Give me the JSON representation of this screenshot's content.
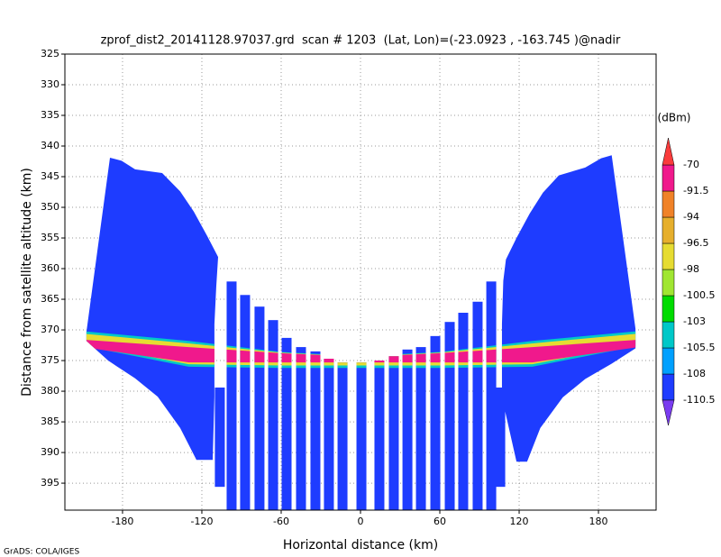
{
  "chart_data": {
    "type": "field",
    "title": "zprof_dist2_20141128.97037.grd  scan # 1203  (Lat, Lon)=(-23.0923 , -163.745 )@nadir",
    "xlabel": "Horizontal distance (km)",
    "ylabel": "Distance from satellite altitude (km)",
    "footer": "GrADS: COLA/IGES",
    "xlim": [
      -223.6,
      223.6
    ],
    "ylim": [
      325,
      399.4
    ],
    "xticks": [
      -180,
      -120,
      -60,
      0,
      60,
      120,
      180
    ],
    "yticks": [
      325,
      330,
      335,
      340,
      345,
      350,
      355,
      360,
      365,
      370,
      375,
      380,
      385,
      390,
      395
    ],
    "grid": true,
    "colorbar": {
      "unit": "(dBm)",
      "levels": [
        -110.5,
        -108,
        -105.5,
        -103,
        -100.5,
        -98,
        -96.5,
        -94,
        -91.5,
        -70
      ],
      "colors": [
        "#7a3cf0",
        "#1e3cff",
        "#00a0ff",
        "#00c8c8",
        "#00dc00",
        "#a0e632",
        "#e6dc32",
        "#e6af2d",
        "#f08228",
        "#f0198c",
        "#fa3c3c"
      ]
    },
    "fans": [
      {
        "value": -109,
        "x": [
          -207.3,
          -207.3,
          -190.9,
          -170.5,
          -153.4,
          -136.4,
          -124.1,
          -111.8,
          -110.5,
          -110.5,
          -109.1,
          -107.7,
          -115.9,
          -126.1,
          -136.4,
          -150,
          -170.5,
          -180.7,
          -189.5
        ],
        "y": [
          370.3,
          371.8,
          375,
          377.9,
          380.9,
          386,
          391.2,
          391.2,
          380.9,
          369.1,
          362.9,
          358.1,
          354.7,
          350.7,
          347.4,
          344.4,
          343.8,
          342.4,
          341.9
        ]
      },
      {
        "value": -109,
        "x": [
          208,
          208,
          190,
          170,
          153,
          136,
          126,
          118,
          107,
          107,
          108,
          110,
          118,
          128,
          138,
          150,
          170,
          182,
          190
        ],
        "y": [
          369.8,
          373,
          375.5,
          378,
          381,
          386,
          391.5,
          391.5,
          381,
          369,
          362,
          358.5,
          355,
          351,
          347.6,
          344.8,
          343.5,
          342,
          341.5
        ]
      }
    ],
    "columns": {
      "value": -109,
      "x": [
        -106.4,
        -97.5,
        -87.3,
        -76.4,
        -66.1,
        -55.9,
        -45,
        -34.1,
        -23.9,
        -13.6,
        0.7,
        14.3,
        25.2,
        35.5,
        45.7,
        56.6,
        67.5,
        77.7,
        88.6,
        98.9,
        105.7
      ],
      "top": [
        379.4,
        362.1,
        364.3,
        366.2,
        368.4,
        371.3,
        372.8,
        373.5,
        374.7,
        375.3,
        375.3,
        375,
        374.3,
        373.2,
        372.8,
        371,
        368.7,
        367.2,
        365.4,
        362.1,
        379.4
      ],
      "bottom": [
        395.6,
        399.4,
        399.4,
        399.4,
        399.4,
        399.4,
        399.4,
        399.4,
        399.4,
        399.4,
        399.4,
        399.4,
        399.4,
        399.4,
        399.4,
        399.4,
        399.4,
        399.4,
        399.4,
        399.4,
        395.6
      ]
    },
    "bands": [
      {
        "value": -104,
        "x": [
          -210,
          -130,
          -60,
          0,
          60,
          130,
          210
        ],
        "top": [
          370.2,
          371.8,
          373.6,
          374.3,
          373.6,
          371.8,
          370.2
        ],
        "bottom": [
          372.6,
          376,
          376.2,
          376.2,
          376.2,
          376,
          372.6
        ]
      },
      {
        "value": -97,
        "x": [
          -210,
          -130,
          -60,
          0,
          60,
          130,
          210
        ],
        "top": [
          370.6,
          372.2,
          373.7,
          374.4,
          373.7,
          372.2,
          370.6
        ],
        "bottom": [
          372.3,
          375.6,
          375.8,
          375.8,
          375.8,
          375.6,
          372.3
        ]
      },
      {
        "value": -80,
        "x": [
          -210,
          -130,
          -60,
          0,
          60,
          130,
          210
        ],
        "top": [
          371.6,
          372.8,
          373.8,
          374.4,
          373.8,
          372.8,
          371.6
        ],
        "bottom": [
          372.8,
          375.3,
          375.3,
          375.3,
          375.3,
          375.3,
          372.8
        ]
      }
    ]
  }
}
